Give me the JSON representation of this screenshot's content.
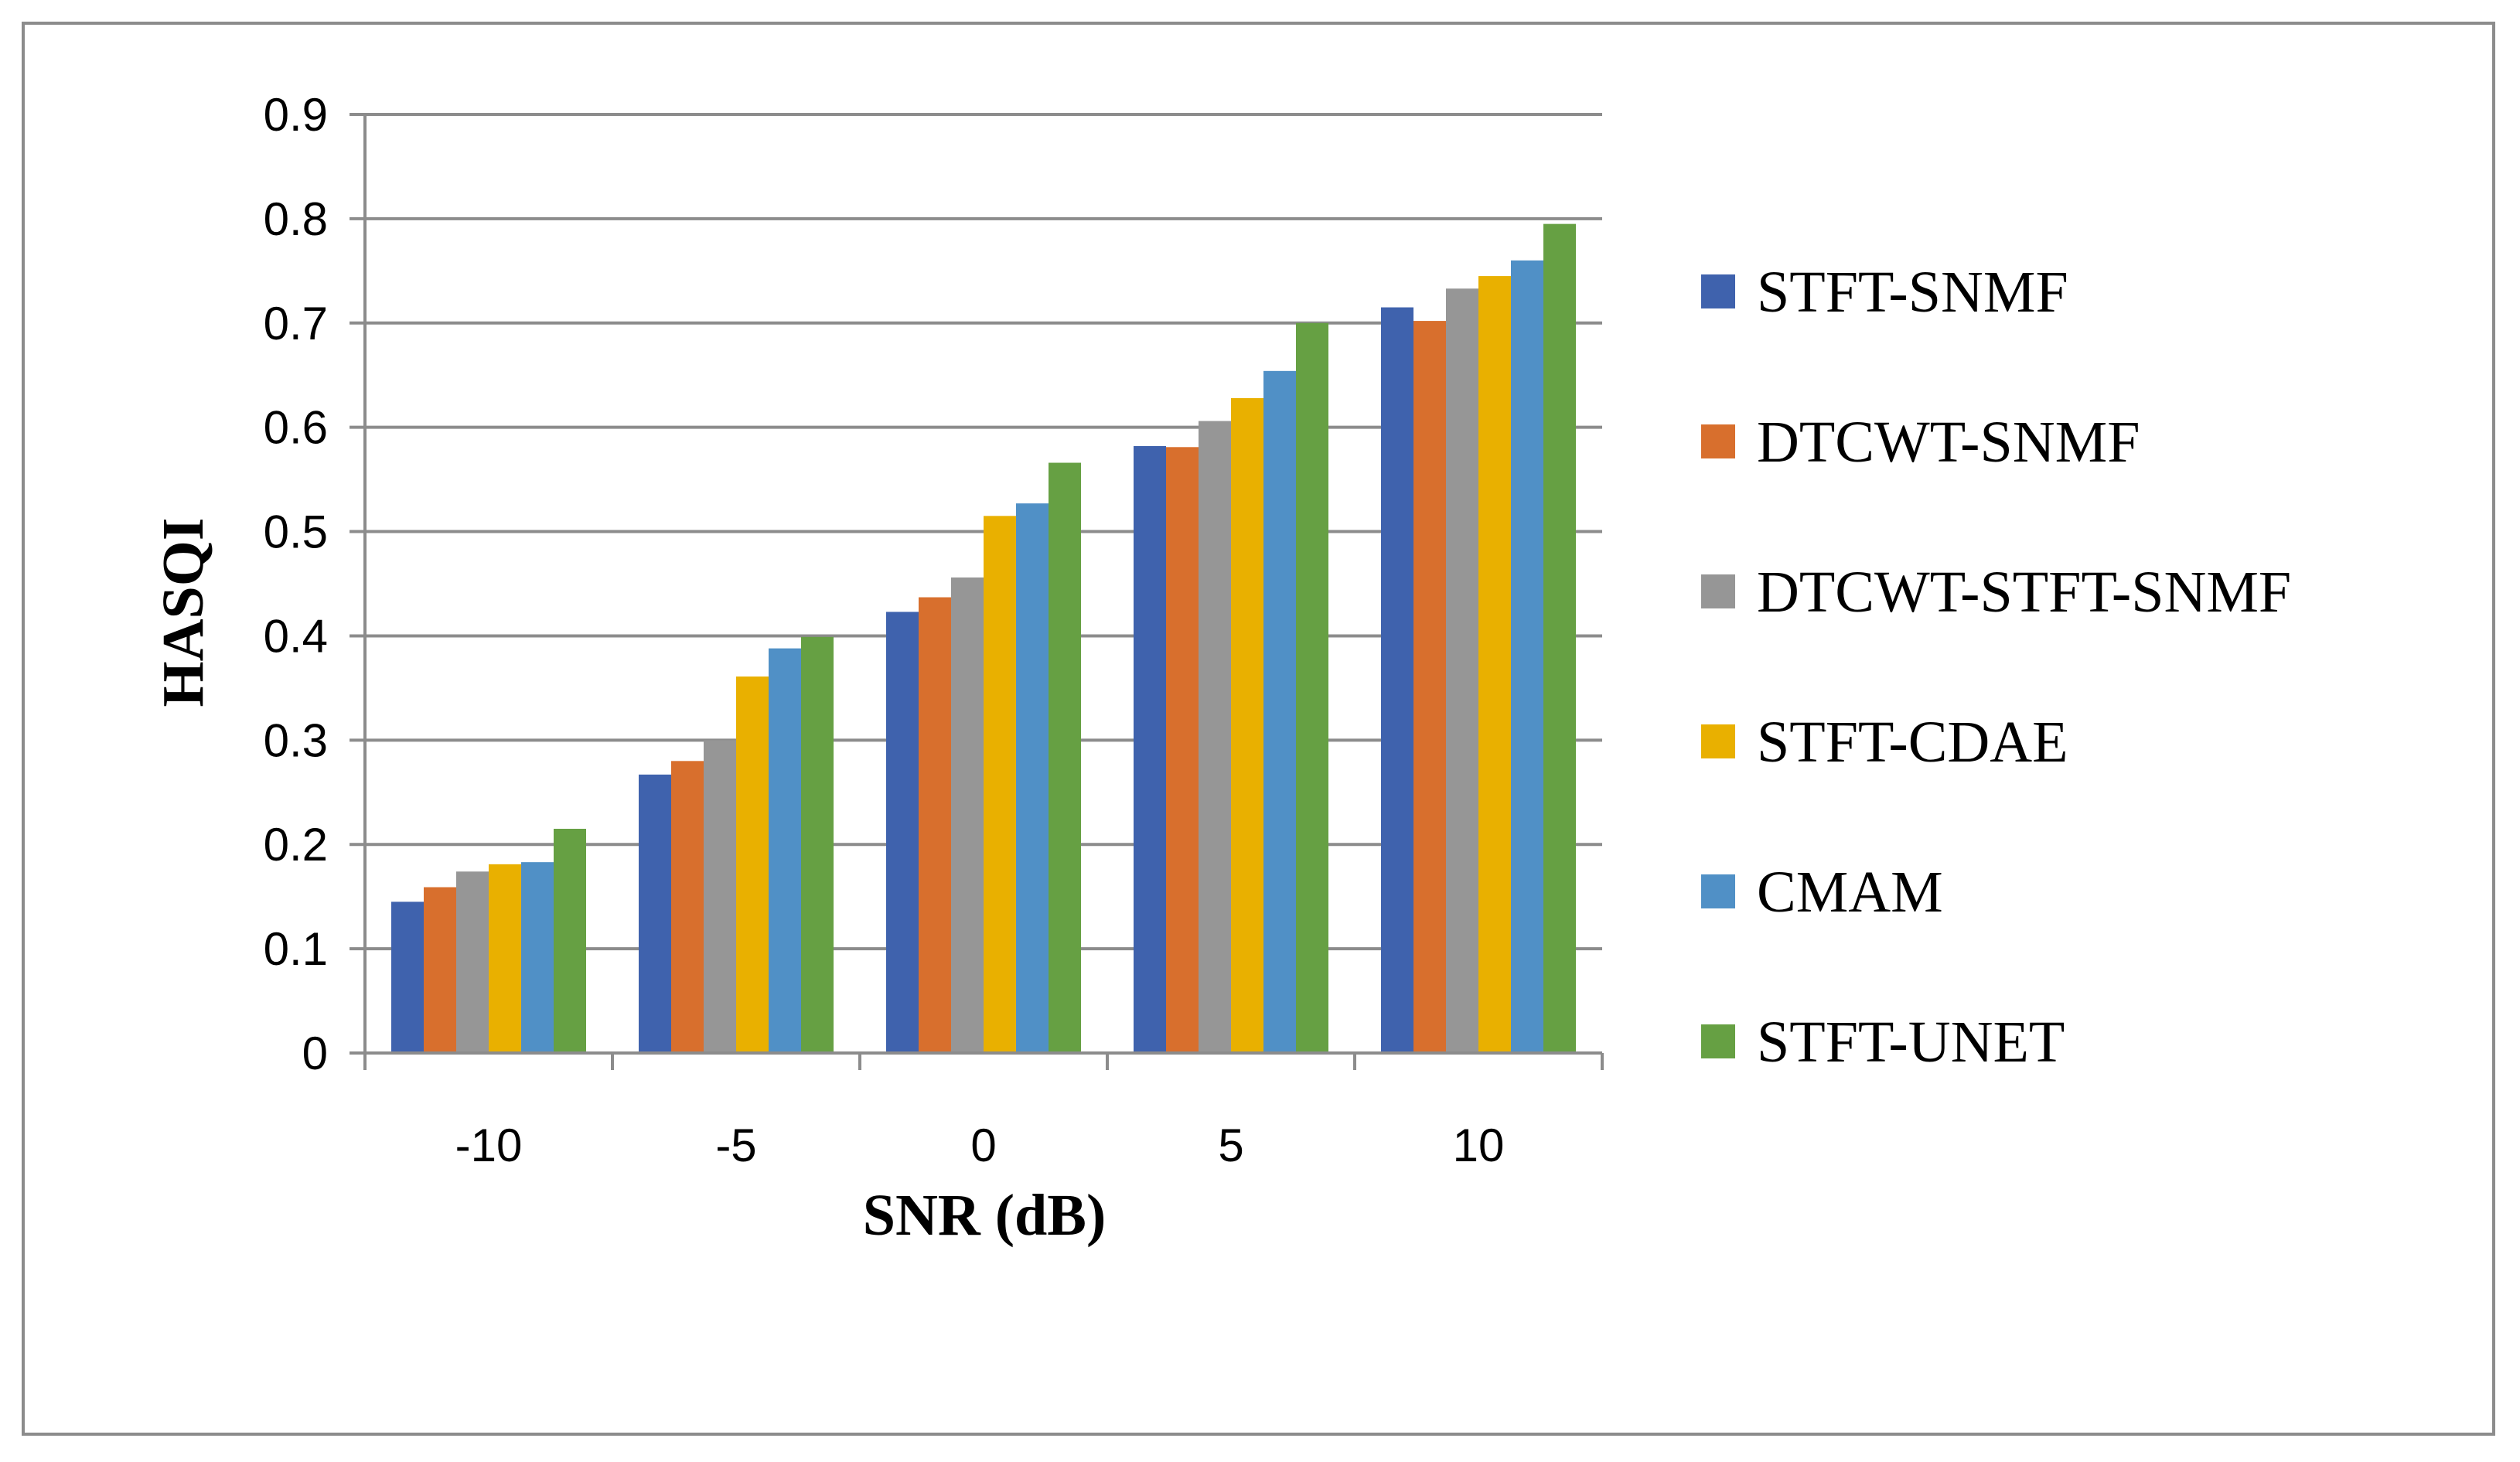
{
  "chart_data": {
    "type": "bar",
    "title": "",
    "xlabel": "SNR (dB)",
    "ylabel": "HASQI",
    "ylim": [
      0,
      0.9
    ],
    "yticks": [
      "0",
      "0.1",
      "0.2",
      "0.3",
      "0.4",
      "0.5",
      "0.6",
      "0.7",
      "0.8",
      "0.9"
    ],
    "grid": true,
    "legend_position": "right",
    "categories": [
      "-10",
      "-5",
      "0",
      "5",
      "10"
    ],
    "series": [
      {
        "name": "STFT-SNMF",
        "color": "#3f62ad",
        "values": [
          0.145,
          0.267,
          0.423,
          0.582,
          0.715
        ]
      },
      {
        "name": "DTCWT-SNMF",
        "color": "#d86f2d",
        "values": [
          0.159,
          0.28,
          0.437,
          0.581,
          0.702
        ]
      },
      {
        "name": "DTCWT-STFT-SNMF",
        "color": "#969696",
        "values": [
          0.174,
          0.3,
          0.456,
          0.606,
          0.733
        ]
      },
      {
        "name": "STFT-CDAE",
        "color": "#e9b000",
        "values": [
          0.181,
          0.361,
          0.515,
          0.628,
          0.745
        ]
      },
      {
        "name": "CMAM",
        "color": "#5090c6",
        "values": [
          0.183,
          0.388,
          0.527,
          0.654,
          0.76
        ]
      },
      {
        "name": "STFT-UNET",
        "color": "#66a043",
        "values": [
          0.215,
          0.399,
          0.566,
          0.7,
          0.795
        ]
      }
    ]
  }
}
